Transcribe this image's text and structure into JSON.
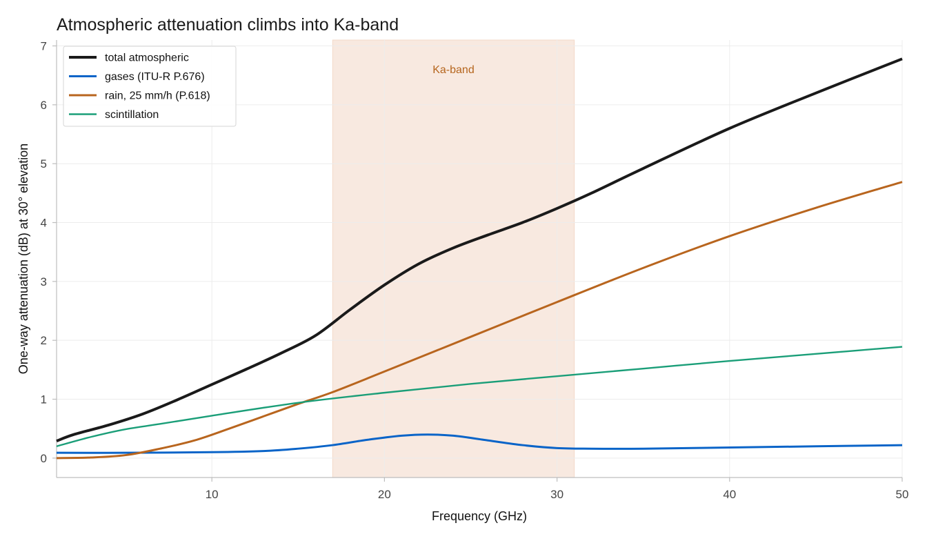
{
  "chart_data": {
    "type": "line",
    "title": "Atmospheric attenuation climbs into Ka-band",
    "xlabel": "Frequency (GHz)",
    "ylabel": "One-way attenuation (dB)  at 30° elevation",
    "xlim": [
      1,
      50
    ],
    "ylim": [
      -0.33,
      7.1
    ],
    "xticks": [
      10,
      20,
      30,
      40,
      50
    ],
    "yticks": [
      0,
      1,
      2,
      3,
      4,
      5,
      6,
      7
    ],
    "grid": true,
    "legend_position": "top-left",
    "band": {
      "label": "Ka-band",
      "x_range": [
        17,
        31
      ],
      "color": "#f8e9e0"
    },
    "series": [
      {
        "name": "total atmospheric",
        "color": "#1a1a1a",
        "width": 4,
        "x": [
          1,
          2,
          4,
          6,
          8,
          10,
          12,
          14,
          16,
          18,
          20,
          22,
          24,
          26,
          28,
          30,
          32,
          35,
          40,
          45,
          50
        ],
        "y": [
          0.29,
          0.4,
          0.56,
          0.75,
          0.99,
          1.25,
          1.51,
          1.78,
          2.08,
          2.52,
          2.94,
          3.3,
          3.57,
          3.79,
          4.0,
          4.24,
          4.5,
          4.92,
          5.6,
          6.2,
          6.78
        ]
      },
      {
        "name": "gases (ITU-R P.676)",
        "color": "#0a64c8",
        "width": 3,
        "x": [
          1,
          5,
          10,
          13,
          15,
          17,
          19,
          21,
          22.5,
          24,
          26,
          28,
          30,
          32,
          35,
          40,
          45,
          50
        ],
        "y": [
          0.09,
          0.09,
          0.1,
          0.12,
          0.16,
          0.22,
          0.31,
          0.38,
          0.4,
          0.38,
          0.3,
          0.22,
          0.17,
          0.16,
          0.16,
          0.18,
          0.2,
          0.22
        ]
      },
      {
        "name": "rain, 25 mm/h (P.618)",
        "color": "#b8651e",
        "width": 3,
        "x": [
          1,
          3,
          5,
          7,
          9,
          11,
          13,
          15,
          17,
          20,
          25,
          30,
          35,
          40,
          45,
          50
        ],
        "y": [
          0.0,
          0.01,
          0.05,
          0.16,
          0.3,
          0.5,
          0.71,
          0.92,
          1.12,
          1.47,
          2.06,
          2.65,
          3.23,
          3.77,
          4.25,
          4.69
        ]
      },
      {
        "name": "scintillation",
        "color": "#1a9e78",
        "width": 2.4,
        "x": [
          1,
          3,
          5,
          7,
          10,
          15,
          20,
          25,
          30,
          35,
          40,
          45,
          50
        ],
        "y": [
          0.2,
          0.36,
          0.49,
          0.58,
          0.72,
          0.94,
          1.11,
          1.26,
          1.39,
          1.52,
          1.65,
          1.77,
          1.89
        ]
      }
    ]
  }
}
